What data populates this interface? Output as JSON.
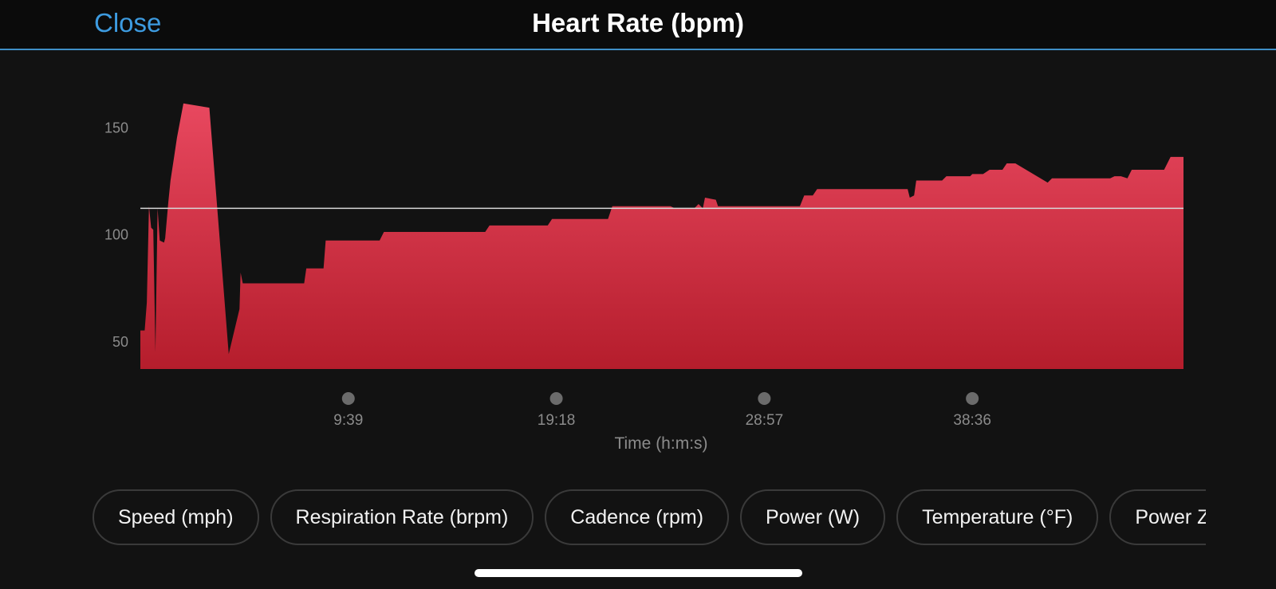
{
  "header": {
    "close_label": "Close",
    "title": "Heart Rate (bpm)"
  },
  "chart_data": {
    "type": "area",
    "title": "Heart Rate (bpm)",
    "xlabel": "Time (h:m:s)",
    "x_ticks": [
      "9:39",
      "19:18",
      "28:57",
      "38:36"
    ],
    "x_tick_values": [
      9.65,
      19.3,
      28.95,
      38.6
    ],
    "xlim": [
      0,
      48.4
    ],
    "ylim": [
      37,
      162
    ],
    "y_ticks": [
      50,
      100,
      150
    ],
    "average": 112,
    "fill_colors": [
      "#e8485f",
      "#b51d2c"
    ],
    "series": [
      {
        "x": [
          0,
          0.2,
          0.3,
          0.4,
          0.5,
          0.6,
          0.7,
          0.8,
          0.9,
          1.1,
          1.15,
          1.3,
          1.4,
          1.55,
          1.7,
          2.0,
          3.2,
          4.1,
          4.6,
          4.65,
          4.75,
          5.0,
          5.1,
          7.6,
          7.7,
          8.5,
          8.6,
          9.6,
          9.8,
          11.1,
          11.3,
          16.0,
          16.2,
          18.9,
          19.1,
          21.7,
          21.9,
          22.5,
          22.7,
          24.6,
          24.8,
          25.7,
          25.8,
          25.9,
          26.1,
          26.2,
          26.7,
          26.8,
          30.6,
          30.8,
          31.2,
          31.4,
          35.6,
          35.7,
          35.9,
          36.0,
          37.2,
          37.4,
          38.5,
          38.6,
          39.1,
          39.4,
          40.0,
          40.2,
          40.5,
          40.6,
          42.1,
          42.3,
          44.7,
          45.0,
          45.2,
          45.5,
          45.8,
          46.0,
          47.5,
          47.8,
          48.4
        ],
        "y": [
          55,
          55,
          68,
          113,
          103,
          102,
          45,
          112,
          97,
          96,
          98,
          115,
          125,
          135,
          145,
          161,
          159,
          44,
          65,
          82,
          77,
          77,
          77,
          77,
          84,
          84,
          97,
          97,
          97,
          97,
          101,
          101,
          104,
          104,
          107,
          107,
          113,
          113,
          113,
          113,
          112,
          112,
          113,
          114,
          112,
          117,
          116,
          113,
          113,
          118,
          118,
          121,
          121,
          117,
          118,
          125,
          125,
          127,
          127,
          128,
          128,
          130,
          130,
          133,
          133,
          133,
          124,
          126,
          126,
          126,
          127,
          127,
          126,
          130,
          130,
          136,
          136
        ]
      }
    ]
  },
  "pills": [
    "Speed (mph)",
    "Respiration Rate (brpm)",
    "Cadence (rpm)",
    "Power (W)",
    "Temperature (°F)",
    "Power Zones"
  ]
}
